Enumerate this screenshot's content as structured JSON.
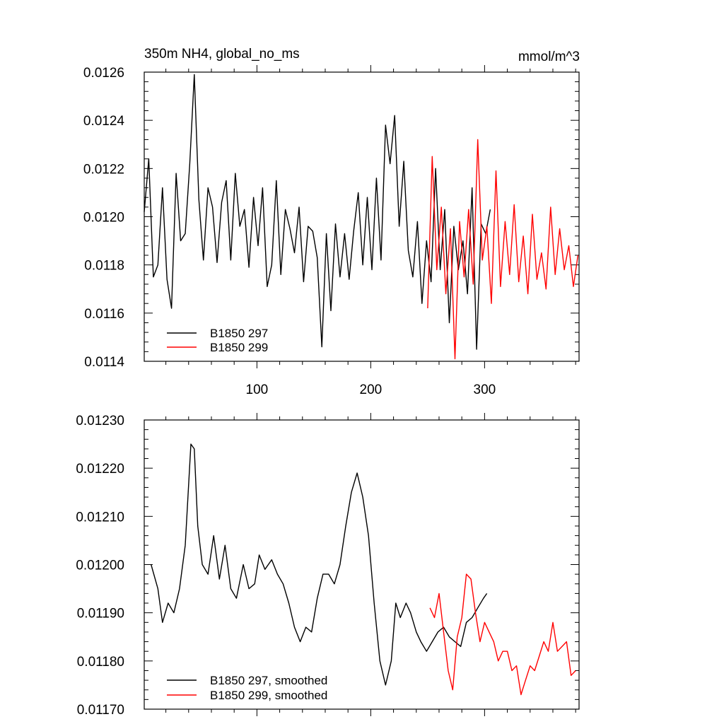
{
  "colors": {
    "series_297": "#000000",
    "series_299": "#ff0000",
    "axes": "#000000",
    "background": "#ffffff"
  },
  "chart_data": [
    {
      "type": "line",
      "title": "350m NH4, global_no_ms",
      "units": "mmol/m^3",
      "xlabel": "",
      "ylabel": "",
      "xlim": [
        1,
        383
      ],
      "ylim": [
        0.0114,
        0.0126
      ],
      "x_tick_values": [
        100,
        200,
        300
      ],
      "x_tick_labels": [
        "100",
        "200",
        "300"
      ],
      "y_tick_values": [
        0.0114,
        0.0116,
        0.0118,
        0.012,
        0.0122,
        0.0124,
        0.0126
      ],
      "y_tick_labels": [
        "0.0114",
        "0.0116",
        "0.0118",
        "0.0120",
        "0.0122",
        "0.0124",
        "0.0126"
      ],
      "grid": false,
      "legend_position": "bottom-left",
      "series": [
        {
          "name": "B1850 297",
          "color": "#000000",
          "x_start": 1,
          "x_step": 4,
          "values": [
            0.01202,
            0.01224,
            0.01175,
            0.0118,
            0.01212,
            0.01174,
            0.01162,
            0.01218,
            0.0119,
            0.01193,
            0.01222,
            0.01259,
            0.01207,
            0.01182,
            0.01212,
            0.01204,
            0.01181,
            0.01206,
            0.01215,
            0.01182,
            0.01218,
            0.01196,
            0.01203,
            0.01179,
            0.01208,
            0.01188,
            0.01212,
            0.01171,
            0.0118,
            0.01215,
            0.01176,
            0.01203,
            0.01195,
            0.01185,
            0.01204,
            0.01173,
            0.01196,
            0.01194,
            0.01183,
            0.01146,
            0.01193,
            0.01161,
            0.01197,
            0.01175,
            0.01193,
            0.01174,
            0.01194,
            0.0121,
            0.0118,
            0.01208,
            0.01178,
            0.01216,
            0.01182,
            0.01238,
            0.01222,
            0.01242,
            0.01196,
            0.01223,
            0.01186,
            0.01175,
            0.01198,
            0.01164,
            0.0119,
            0.01173,
            0.0122,
            0.01178,
            0.01203,
            0.01156,
            0.01196,
            0.01178,
            0.0119,
            0.01168,
            0.01212,
            0.01145,
            0.01197,
            0.01193,
            0.01203
          ]
        },
        {
          "name": "B1850 299",
          "color": "#ff0000",
          "x_start": 250,
          "x_step": 4,
          "values": [
            0.01162,
            0.01225,
            0.01178,
            0.01204,
            0.01168,
            0.01195,
            0.01141,
            0.01198,
            0.01175,
            0.01203,
            0.01172,
            0.01232,
            0.01182,
            0.01196,
            0.01164,
            0.01219,
            0.01171,
            0.01198,
            0.01176,
            0.01205,
            0.01173,
            0.01192,
            0.01168,
            0.01201,
            0.01174,
            0.01185,
            0.0117,
            0.01204,
            0.01176,
            0.01195,
            0.01178,
            0.01188,
            0.01171,
            0.01184
          ]
        }
      ]
    },
    {
      "type": "line",
      "title": "",
      "xlabel": "",
      "ylabel": "",
      "xlim": [
        1,
        383
      ],
      "ylim": [
        0.0117,
        0.0123
      ],
      "x_tick_values": [
        100,
        200,
        300
      ],
      "y_tick_values": [
        0.0117,
        0.0118,
        0.0119,
        0.012,
        0.0121,
        0.0122,
        0.0123
      ],
      "y_tick_labels": [
        "0.01170",
        "0.01180",
        "0.01190",
        "0.01200",
        "0.01210",
        "0.01220",
        "0.01230"
      ],
      "grid": false,
      "legend_position": "bottom-left",
      "series": [
        {
          "name": "B1850 297, smoothed",
          "color": "#000000",
          "x": [
            7,
            13,
            17,
            22,
            27,
            32,
            37,
            42,
            45,
            48,
            52,
            57,
            62,
            67,
            72,
            77,
            82,
            88,
            93,
            98,
            102,
            107,
            113,
            118,
            123,
            128,
            133,
            138,
            143,
            148,
            153,
            158,
            163,
            168,
            173,
            178,
            183,
            188,
            193,
            198,
            203,
            208,
            213,
            218,
            222,
            226,
            231,
            235,
            240,
            244,
            249,
            254,
            259,
            264,
            269,
            274,
            279,
            284,
            289,
            294,
            299,
            302
          ],
          "values": [
            0.012,
            0.01195,
            0.01188,
            0.01192,
            0.0119,
            0.01195,
            0.01204,
            0.01225,
            0.01224,
            0.01208,
            0.012,
            0.01198,
            0.01206,
            0.01197,
            0.01204,
            0.01195,
            0.01193,
            0.012,
            0.01195,
            0.01196,
            0.01202,
            0.01199,
            0.01201,
            0.01198,
            0.01196,
            0.01192,
            0.01187,
            0.01184,
            0.01187,
            0.01186,
            0.01193,
            0.01198,
            0.01198,
            0.01196,
            0.012,
            0.01208,
            0.01215,
            0.01219,
            0.01214,
            0.01206,
            0.01192,
            0.0118,
            0.01175,
            0.0118,
            0.01192,
            0.01189,
            0.01192,
            0.0119,
            0.01186,
            0.01184,
            0.01182,
            0.01184,
            0.01186,
            0.01187,
            0.01185,
            0.01184,
            0.01183,
            0.01188,
            0.01189,
            0.01191,
            0.01193,
            0.01194
          ]
        },
        {
          "name": "B1850 299, smoothed",
          "color": "#ff0000",
          "x": [
            252,
            256,
            260,
            264,
            268,
            272,
            276,
            280,
            284,
            288,
            292,
            296,
            300,
            304,
            308,
            312,
            316,
            320,
            324,
            328,
            332,
            336,
            340,
            344,
            348,
            352,
            356,
            360,
            364,
            368,
            372,
            376,
            380
          ],
          "values": [
            0.01191,
            0.01189,
            0.01194,
            0.01186,
            0.01178,
            0.01174,
            0.01185,
            0.01189,
            0.01198,
            0.01197,
            0.0119,
            0.01184,
            0.01188,
            0.01186,
            0.01184,
            0.0118,
            0.01182,
            0.01182,
            0.01178,
            0.01179,
            0.01173,
            0.01176,
            0.01179,
            0.01178,
            0.01181,
            0.01184,
            0.01182,
            0.01188,
            0.01182,
            0.01183,
            0.01184,
            0.01177,
            0.01178
          ]
        }
      ]
    }
  ]
}
